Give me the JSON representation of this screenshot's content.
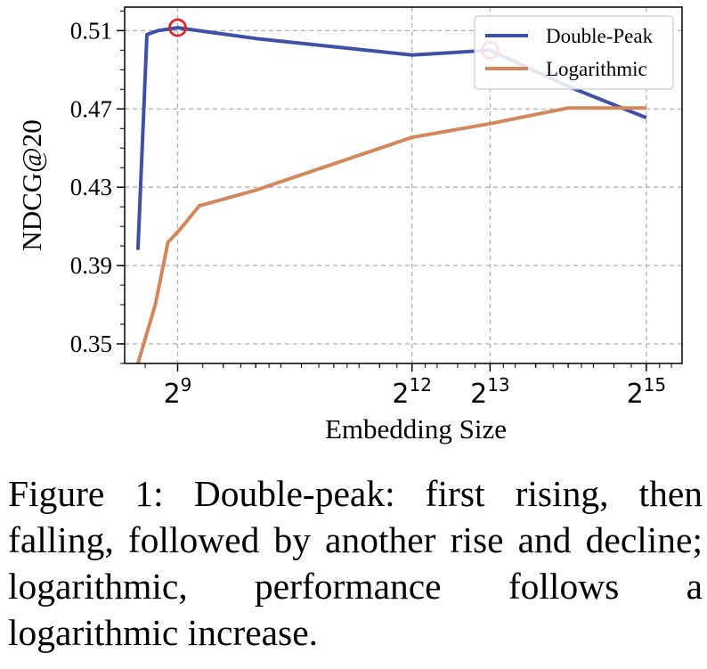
{
  "chart_data": {
    "type": "line",
    "xlabel": "Embedding Size",
    "ylabel": "NDCG@20",
    "x_scale": "log2",
    "xticks": [
      {
        "value": 512,
        "base": "2",
        "exp": "9"
      },
      {
        "value": 4096,
        "base": "2",
        "exp": "12"
      },
      {
        "value": 8192,
        "base": "2",
        "exp": "13"
      },
      {
        "value": 32768,
        "base": "2",
        "exp": "15"
      }
    ],
    "yticks": [
      "0.35",
      "0.39",
      "0.43",
      "0.47",
      "0.51"
    ],
    "ylim": [
      0.34,
      0.522
    ],
    "grid": true,
    "legend_position": "top-right",
    "series": [
      {
        "name": "Double-Peak",
        "color": "#3f51a6",
        "points": [
          [
            360,
            0.398
          ],
          [
            390,
            0.508
          ],
          [
            430,
            0.51
          ],
          [
            512,
            0.5115
          ],
          [
            700,
            0.509
          ],
          [
            1024,
            0.506
          ],
          [
            4096,
            0.4975
          ],
          [
            8192,
            0.5
          ],
          [
            16384,
            0.4815
          ],
          [
            32768,
            0.4655
          ]
        ]
      },
      {
        "name": "Logarithmic",
        "color": "#d4875a",
        "points": [
          [
            360,
            0.34
          ],
          [
            420,
            0.37
          ],
          [
            470,
            0.402
          ],
          [
            520,
            0.408
          ],
          [
            620,
            0.4205
          ],
          [
            1024,
            0.4285
          ],
          [
            4096,
            0.4555
          ],
          [
            8192,
            0.4625
          ],
          [
            16384,
            0.4705
          ],
          [
            32768,
            0.4705
          ]
        ]
      }
    ],
    "highlighted_peaks": [
      {
        "series": "Double-Peak",
        "x": 512,
        "y": 0.5115,
        "color": "#e0242b"
      },
      {
        "series": "Double-Peak",
        "x": 8192,
        "y": 0.5,
        "color": "#e0242b"
      }
    ]
  },
  "caption": "Figure 1: Double-peak: first rising, then falling, followed by another rise and decline; logarithmic, performance follows a logarithmic increase."
}
